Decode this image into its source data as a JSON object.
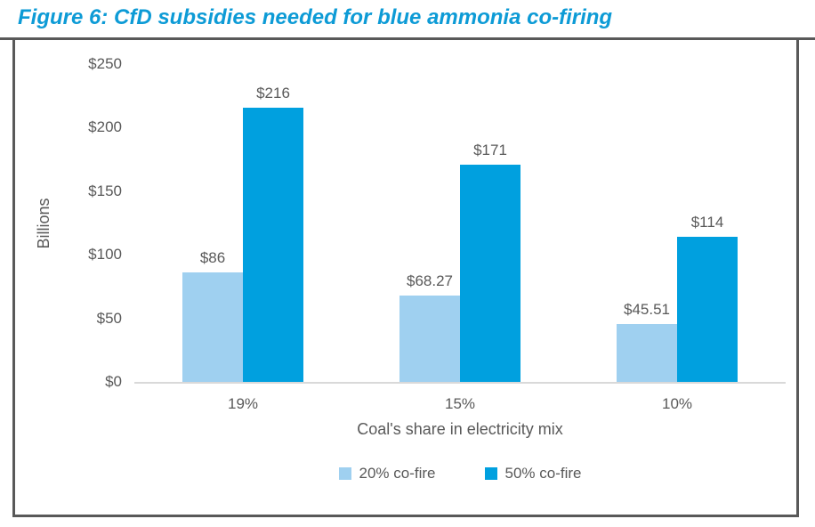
{
  "figure": {
    "title": "Figure 6: CfD subsidies needed for blue ammonia co-firing",
    "title_color": "#0D9BD6",
    "border_color": "#595959",
    "text_color": "#595959"
  },
  "chart_data": {
    "type": "bar",
    "title": "Figure 6: CfD subsidies needed for blue ammonia co-firing",
    "categories": [
      "19%",
      "15%",
      "10%"
    ],
    "series": [
      {
        "name": "20% co-fire",
        "values": [
          86,
          68.27,
          45.51
        ],
        "labels": [
          "$86",
          "$68.27",
          "$45.51"
        ],
        "color": "#9FD0F0"
      },
      {
        "name": "50% co-fire",
        "values": [
          216,
          171,
          114
        ],
        "labels": [
          "$216",
          "$171",
          "$114"
        ],
        "color": "#00A0DF"
      }
    ],
    "xlabel": "Coal's share in electricity mix",
    "ylabel": "Billions",
    "ylim": [
      0,
      250
    ],
    "yticks": [
      0,
      50,
      100,
      150,
      200,
      250
    ],
    "ytick_labels": [
      "$0",
      "$50",
      "$100",
      "$150",
      "$200",
      "$250"
    ],
    "grid": false,
    "legend_position": "bottom",
    "axis_line_color": "#D9D9D9",
    "text_color": "#595959"
  }
}
